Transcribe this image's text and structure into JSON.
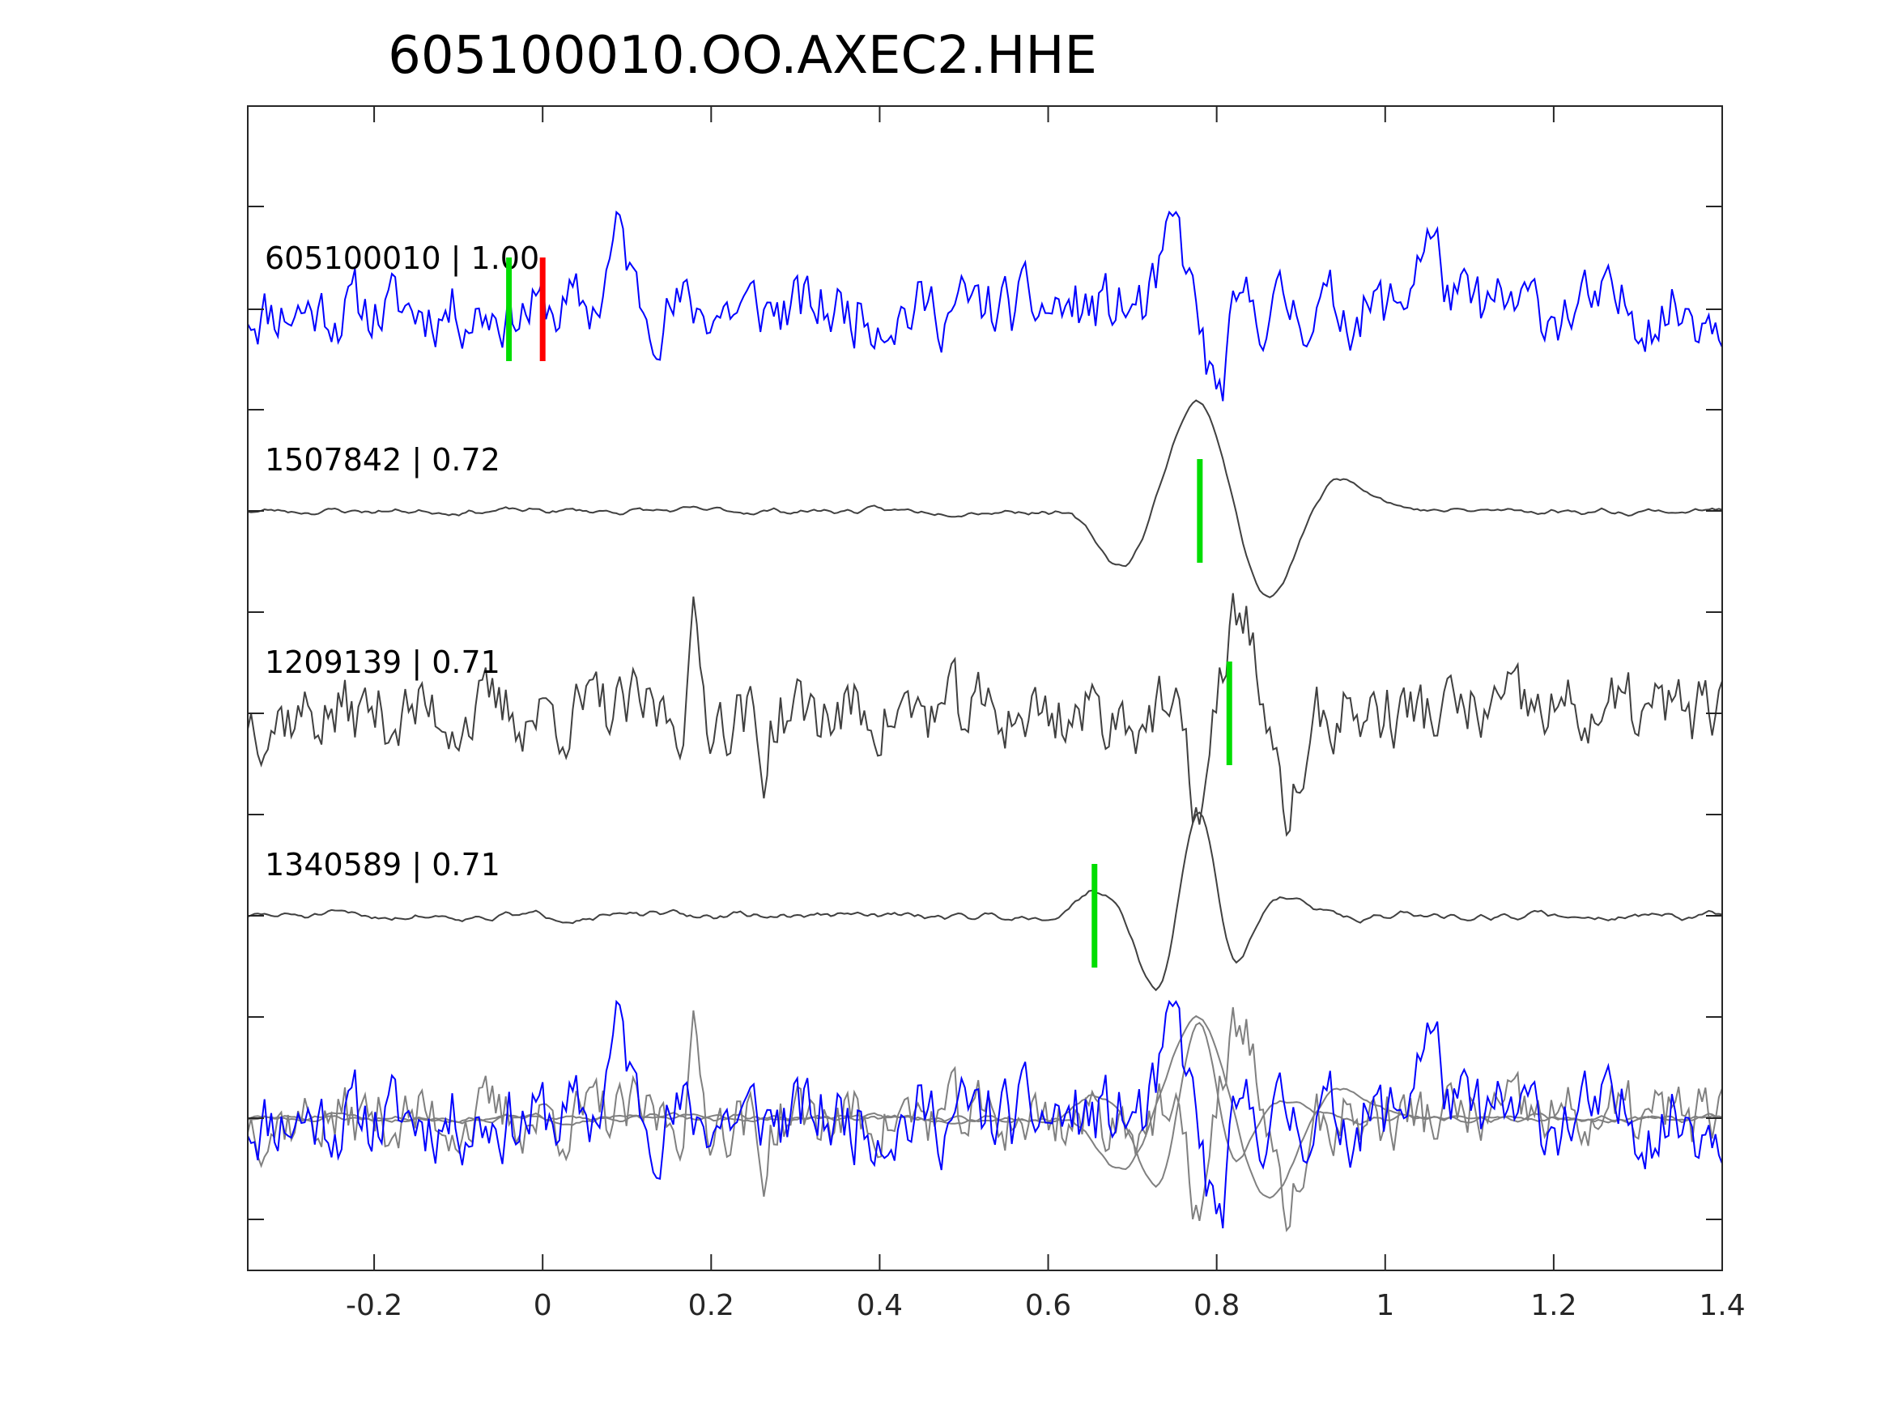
{
  "chart_data": {
    "type": "line",
    "title": "605100010.OO.AXEC2.HHE",
    "xlabel": "",
    "ylabel": "",
    "xlim": [
      -0.35,
      1.4
    ],
    "xticks": [
      -0.2,
      0,
      0.2,
      0.4,
      0.6,
      0.8,
      1,
      1.2,
      1.4
    ],
    "xtick_labels": [
      "-0.2",
      "0",
      "0.2",
      "0.4",
      "0.6",
      "0.8",
      "1",
      "1.2",
      "1.4"
    ],
    "grid": false,
    "legend": "none",
    "colors": {
      "template": "#0000ff",
      "neighbor": "#404040",
      "overlay_neighbor": "#808080",
      "pick_green": "#00dd00",
      "pick_red": "#ff0000",
      "axes": "#262626"
    },
    "traces": [
      {
        "label": "605100010 | 1.00",
        "color": "#0000ff",
        "picks": [
          {
            "t": -0.04,
            "color": "#00dd00"
          },
          {
            "t": 0.0,
            "color": "#ff0000"
          }
        ],
        "events": [
          [
            0.09,
            0.9,
            0.012
          ],
          [
            0.75,
            1.0,
            0.012
          ],
          [
            0.8,
            -1.1,
            0.012
          ],
          [
            1.05,
            0.9,
            0.015
          ]
        ],
        "noise": 0.35,
        "seed": 11
      },
      {
        "label": "1507842 | 0.72",
        "color": "#404040",
        "picks": [
          {
            "t": 0.78,
            "color": "#00dd00"
          }
        ],
        "events": [
          [
            0.69,
            -0.55,
            0.03
          ],
          [
            0.78,
            1.1,
            0.035
          ],
          [
            0.86,
            -0.95,
            0.035
          ],
          [
            0.94,
            0.35,
            0.04
          ]
        ],
        "noise": 0.04,
        "seed": 23
      },
      {
        "label": "1209139 | 0.71",
        "color": "#404040",
        "picks": [
          {
            "t": 0.815,
            "color": "#00dd00"
          }
        ],
        "events": [
          [
            0.18,
            0.75,
            0.006
          ],
          [
            0.26,
            -0.6,
            0.006
          ],
          [
            0.78,
            -0.9,
            0.015
          ],
          [
            0.83,
            1.05,
            0.02
          ],
          [
            0.88,
            -0.95,
            0.02
          ]
        ],
        "noise": 0.3,
        "seed": 37
      },
      {
        "label": "1340589 | 0.71",
        "color": "#404040",
        "picks": [
          {
            "t": 0.655,
            "color": "#00dd00"
          }
        ],
        "events": [
          [
            0.655,
            0.25,
            0.02
          ],
          [
            0.73,
            -0.75,
            0.02
          ],
          [
            0.78,
            1.1,
            0.02
          ],
          [
            0.82,
            -0.6,
            0.02
          ],
          [
            0.87,
            0.2,
            0.03
          ]
        ],
        "noise": 0.05,
        "seed": 51
      }
    ],
    "overlay": {
      "description": "all traces overlaid (template on top)",
      "include": [
        1,
        2,
        3,
        0
      ]
    }
  }
}
